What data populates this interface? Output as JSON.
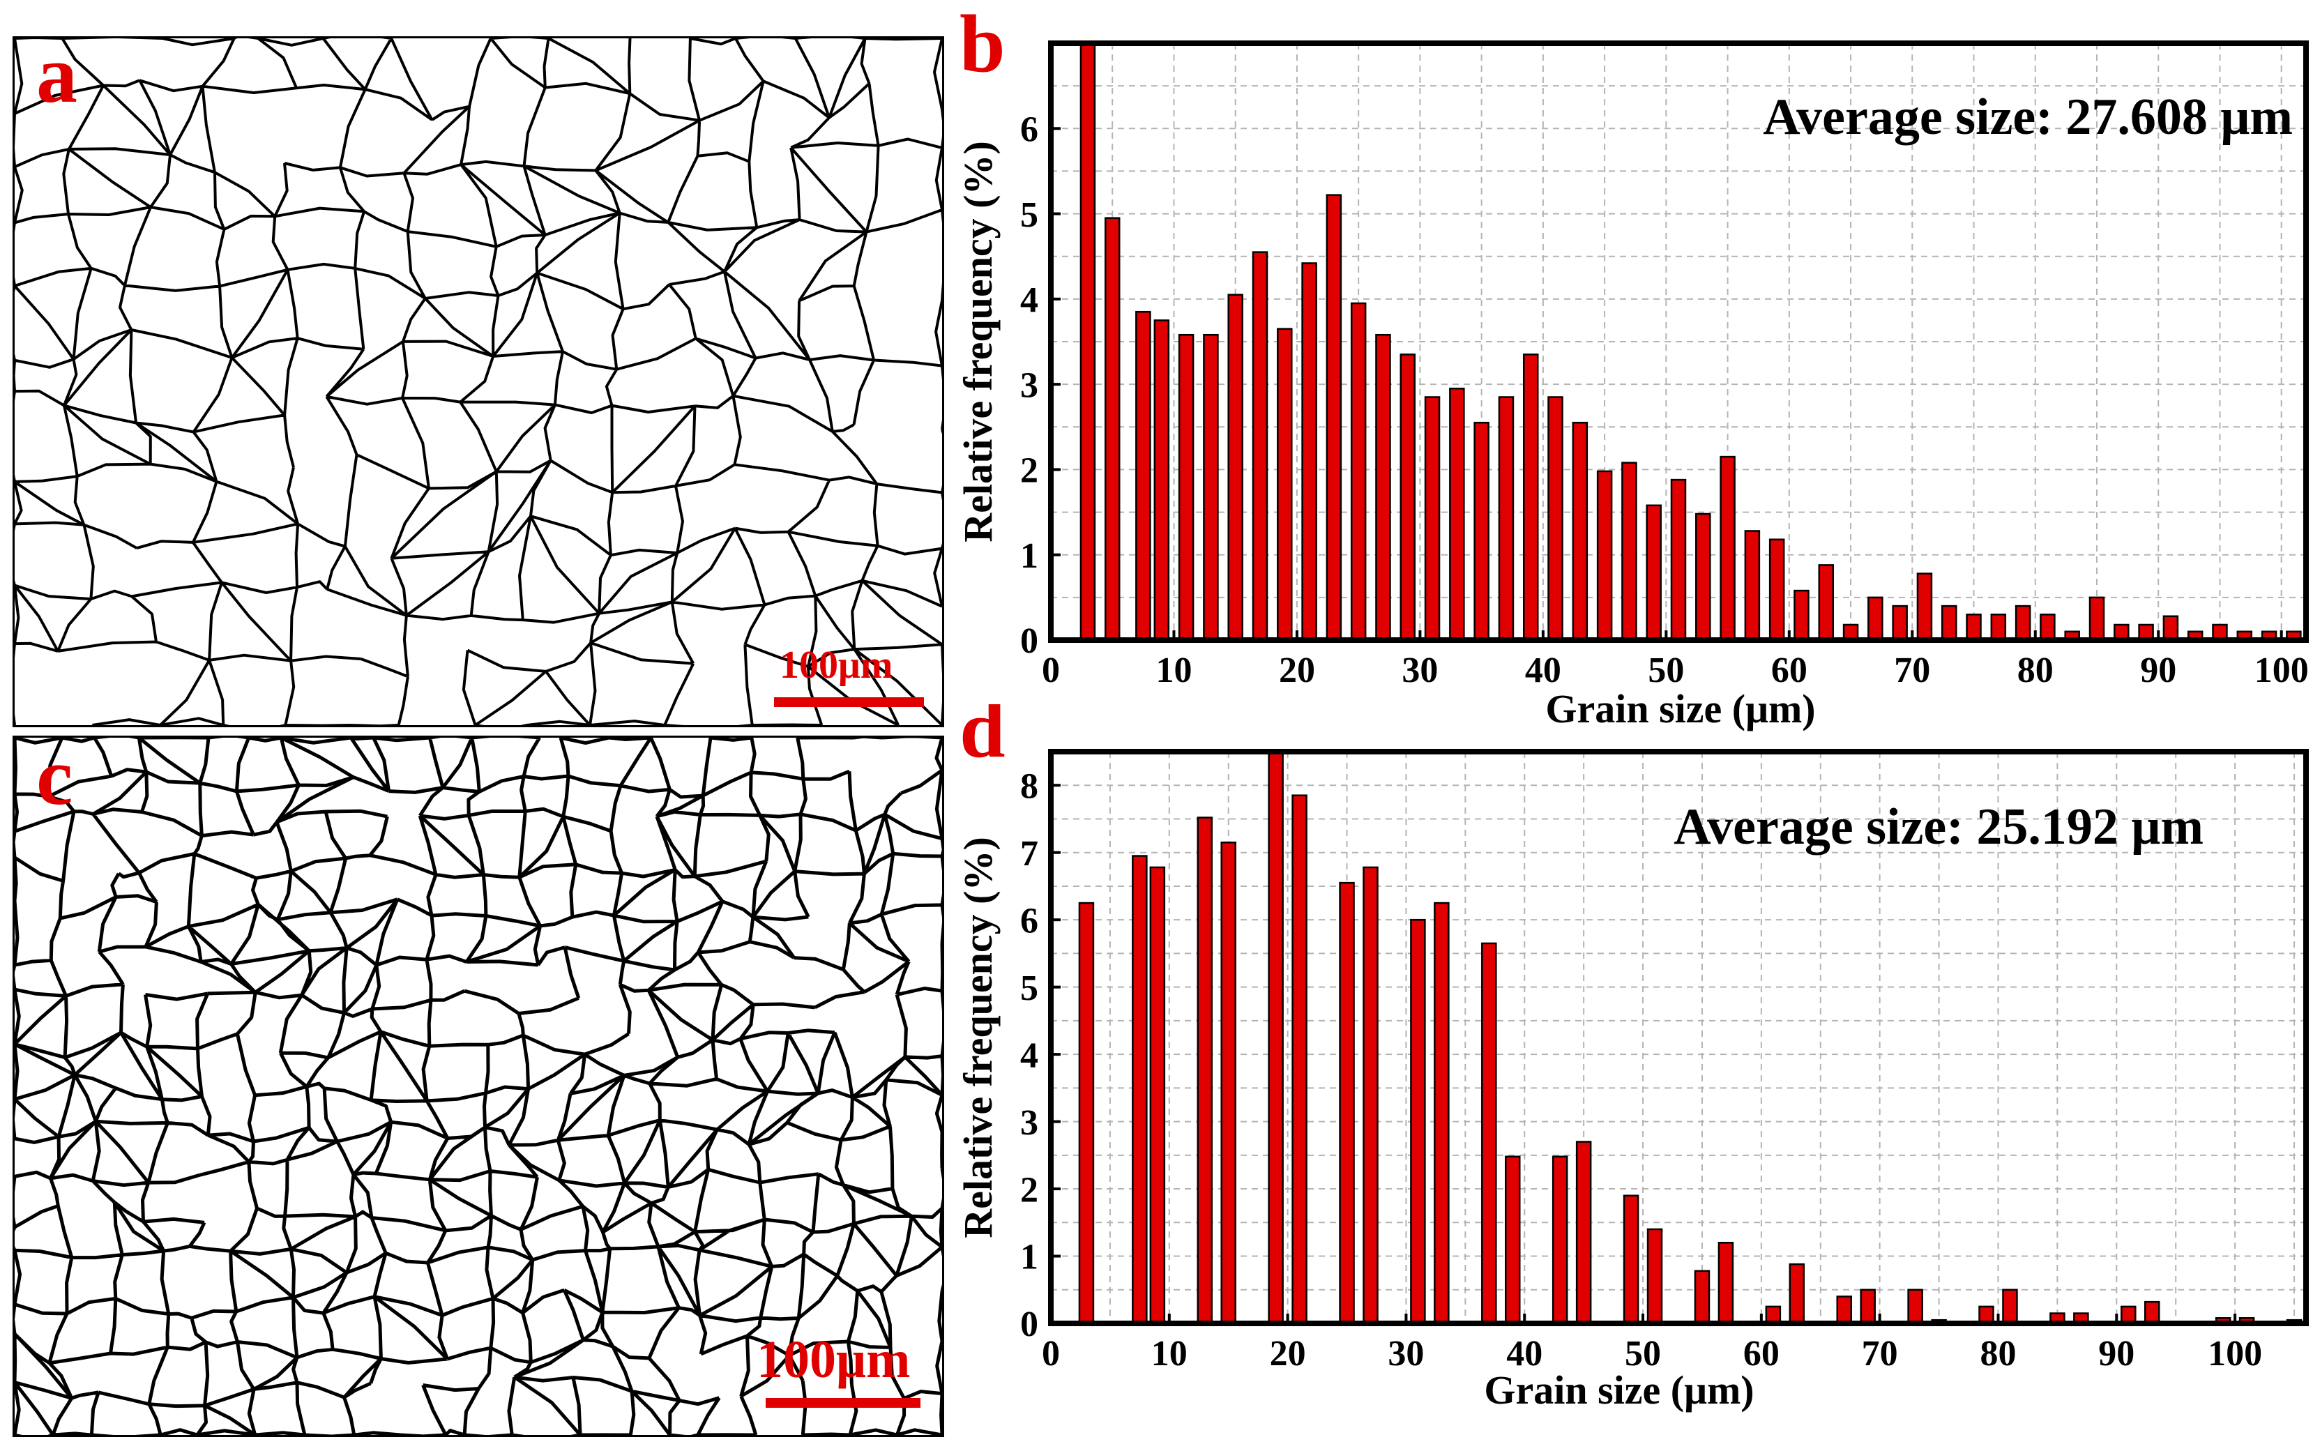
{
  "colors": {
    "bar": "#e00000",
    "label": "#e00000",
    "grid": "#b4b4b4",
    "axis": "#000000"
  },
  "panels": {
    "a": {
      "letter": "a",
      "scale_label": "100μm"
    },
    "c": {
      "letter": "c",
      "scale_label": "100μm"
    }
  },
  "chart_data": [
    {
      "panel": "b",
      "type": "bar",
      "title": "Average size:  27.608 μm",
      "xlabel": "Grain size (μm)",
      "ylabel": "Relative frequency (%)",
      "xlim": [
        0,
        102
      ],
      "ylim": [
        0,
        7
      ],
      "x_ticks": [
        0,
        10,
        20,
        30,
        40,
        50,
        60,
        70,
        80,
        90,
        100
      ],
      "y_ticks": [
        0,
        1,
        2,
        3,
        4,
        5,
        6
      ],
      "x": [
        3,
        5,
        7.5,
        9,
        11,
        13,
        15,
        17,
        19,
        21,
        23,
        25,
        27,
        29,
        31,
        33,
        35,
        37,
        39,
        41,
        43,
        45,
        47,
        49,
        51,
        53,
        55,
        57,
        59,
        61,
        63,
        65,
        67,
        69,
        71,
        73,
        75,
        77,
        79,
        81,
        83,
        85,
        87,
        89,
        91,
        93,
        95,
        97,
        99,
        101
      ],
      "values": [
        7.0,
        4.95,
        3.85,
        3.75,
        3.58,
        3.58,
        4.05,
        4.55,
        3.65,
        4.42,
        5.22,
        3.95,
        3.58,
        3.35,
        2.85,
        2.95,
        2.55,
        2.85,
        3.35,
        2.85,
        2.55,
        1.98,
        2.08,
        1.58,
        1.88,
        1.48,
        2.15,
        1.28,
        1.18,
        0.58,
        0.88,
        0.18,
        0.5,
        0.4,
        0.78,
        0.4,
        0.3,
        0.3,
        0.4,
        0.3,
        0.1,
        0.5,
        0.18,
        0.18,
        0.28,
        0.1,
        0.18,
        0.1,
        0.1,
        0.1
      ]
    },
    {
      "panel": "d",
      "type": "bar",
      "title": "Average size: 25.192 μm",
      "xlabel": "Grain size (μm)",
      "ylabel": "Relative frequency (%)",
      "xlim": [
        0,
        106
      ],
      "ylim": [
        0,
        8.5
      ],
      "x_ticks": [
        0,
        10,
        20,
        30,
        40,
        50,
        60,
        70,
        80,
        90,
        100
      ],
      "y_ticks": [
        0,
        1,
        2,
        3,
        4,
        5,
        6,
        7,
        8
      ],
      "x": [
        3,
        7.5,
        9,
        13,
        15,
        19,
        21,
        25,
        27,
        31,
        33,
        37,
        39,
        43,
        45,
        49,
        51,
        55,
        57,
        61,
        63,
        67,
        69,
        73,
        75,
        79,
        81,
        85,
        87,
        91,
        93,
        99,
        101,
        105
      ],
      "values": [
        6.25,
        6.95,
        6.78,
        7.52,
        7.15,
        8.5,
        7.85,
        6.55,
        6.78,
        6.0,
        6.25,
        5.65,
        2.48,
        2.48,
        2.7,
        1.9,
        1.4,
        0.78,
        1.2,
        0.25,
        0.88,
        0.4,
        0.5,
        0.5,
        0.05,
        0.25,
        0.5,
        0.15,
        0.15,
        0.25,
        0.32,
        0.08,
        0.08,
        0.05
      ]
    }
  ]
}
